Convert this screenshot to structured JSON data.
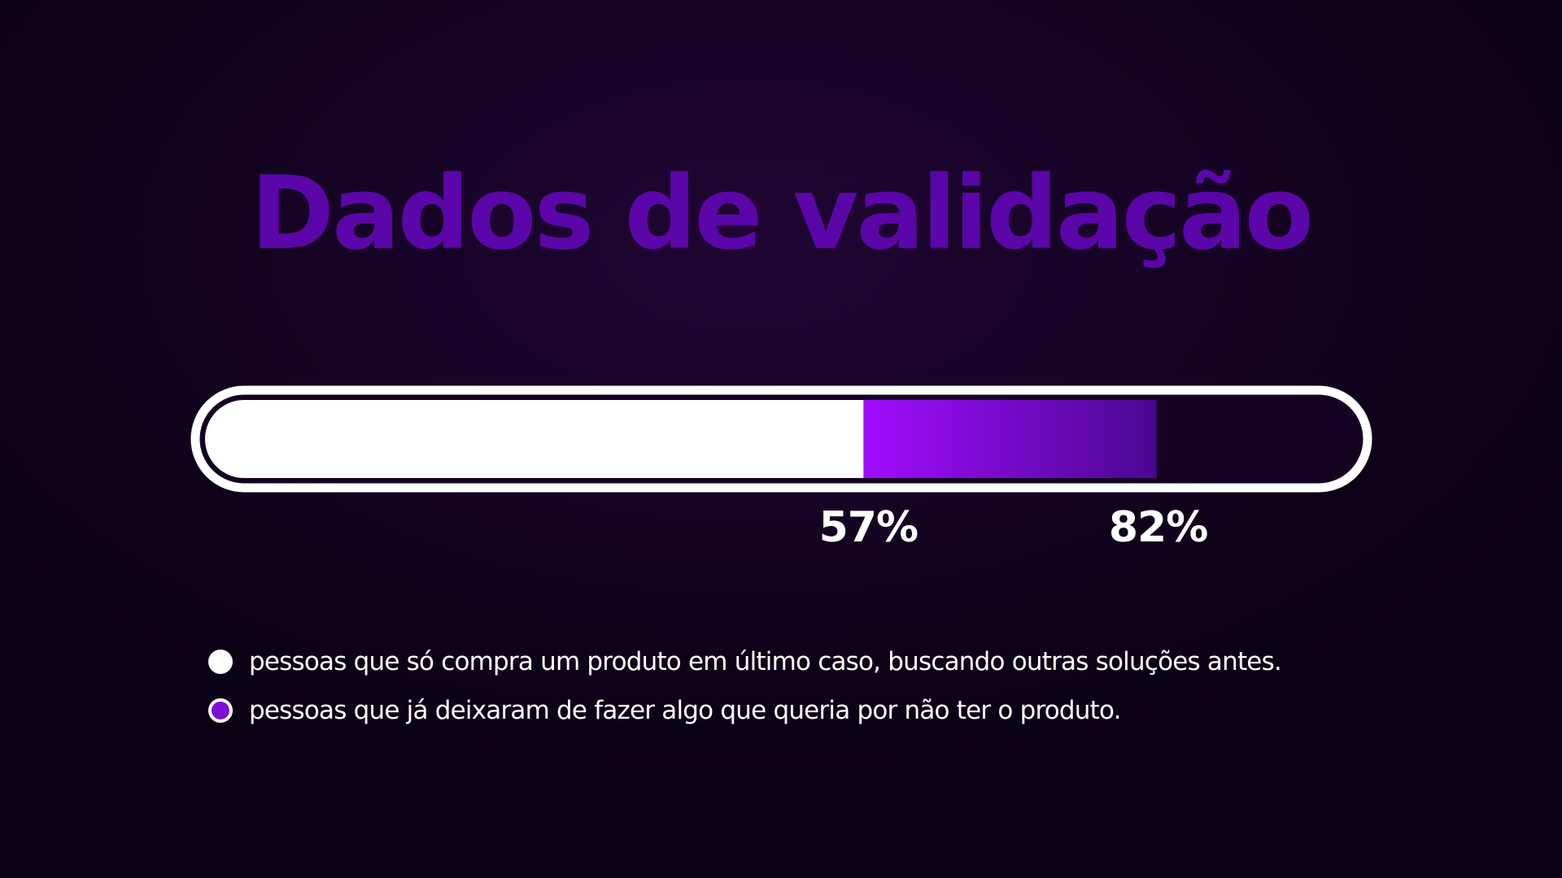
{
  "slide": {
    "title": "Dados de validação"
  },
  "colors": {
    "background_center": "#200533",
    "background_edge": "#0a0114",
    "title": "#5b06a8",
    "bar_white": "#ffffff",
    "bar_purple_start": "#a10dff",
    "bar_purple_end": "#4a0790",
    "bar_track_dark": "#150222",
    "text": "#ffffff"
  },
  "chart_data": {
    "type": "bar",
    "orientation": "horizontal-progress",
    "scale": [
      0,
      100
    ],
    "series": [
      {
        "value": 57,
        "label": "57%",
        "color": "#ffffff"
      },
      {
        "value": 82,
        "label": "82%",
        "color": "#8a0cf0"
      }
    ],
    "legend": [
      {
        "marker": "white-dot",
        "text": "pessoas que só compra um produto em último caso, buscando outras soluções antes."
      },
      {
        "marker": "purple-dot",
        "text": "pessoas que já deixaram de fazer algo que queria por não ter o produto."
      }
    ]
  }
}
